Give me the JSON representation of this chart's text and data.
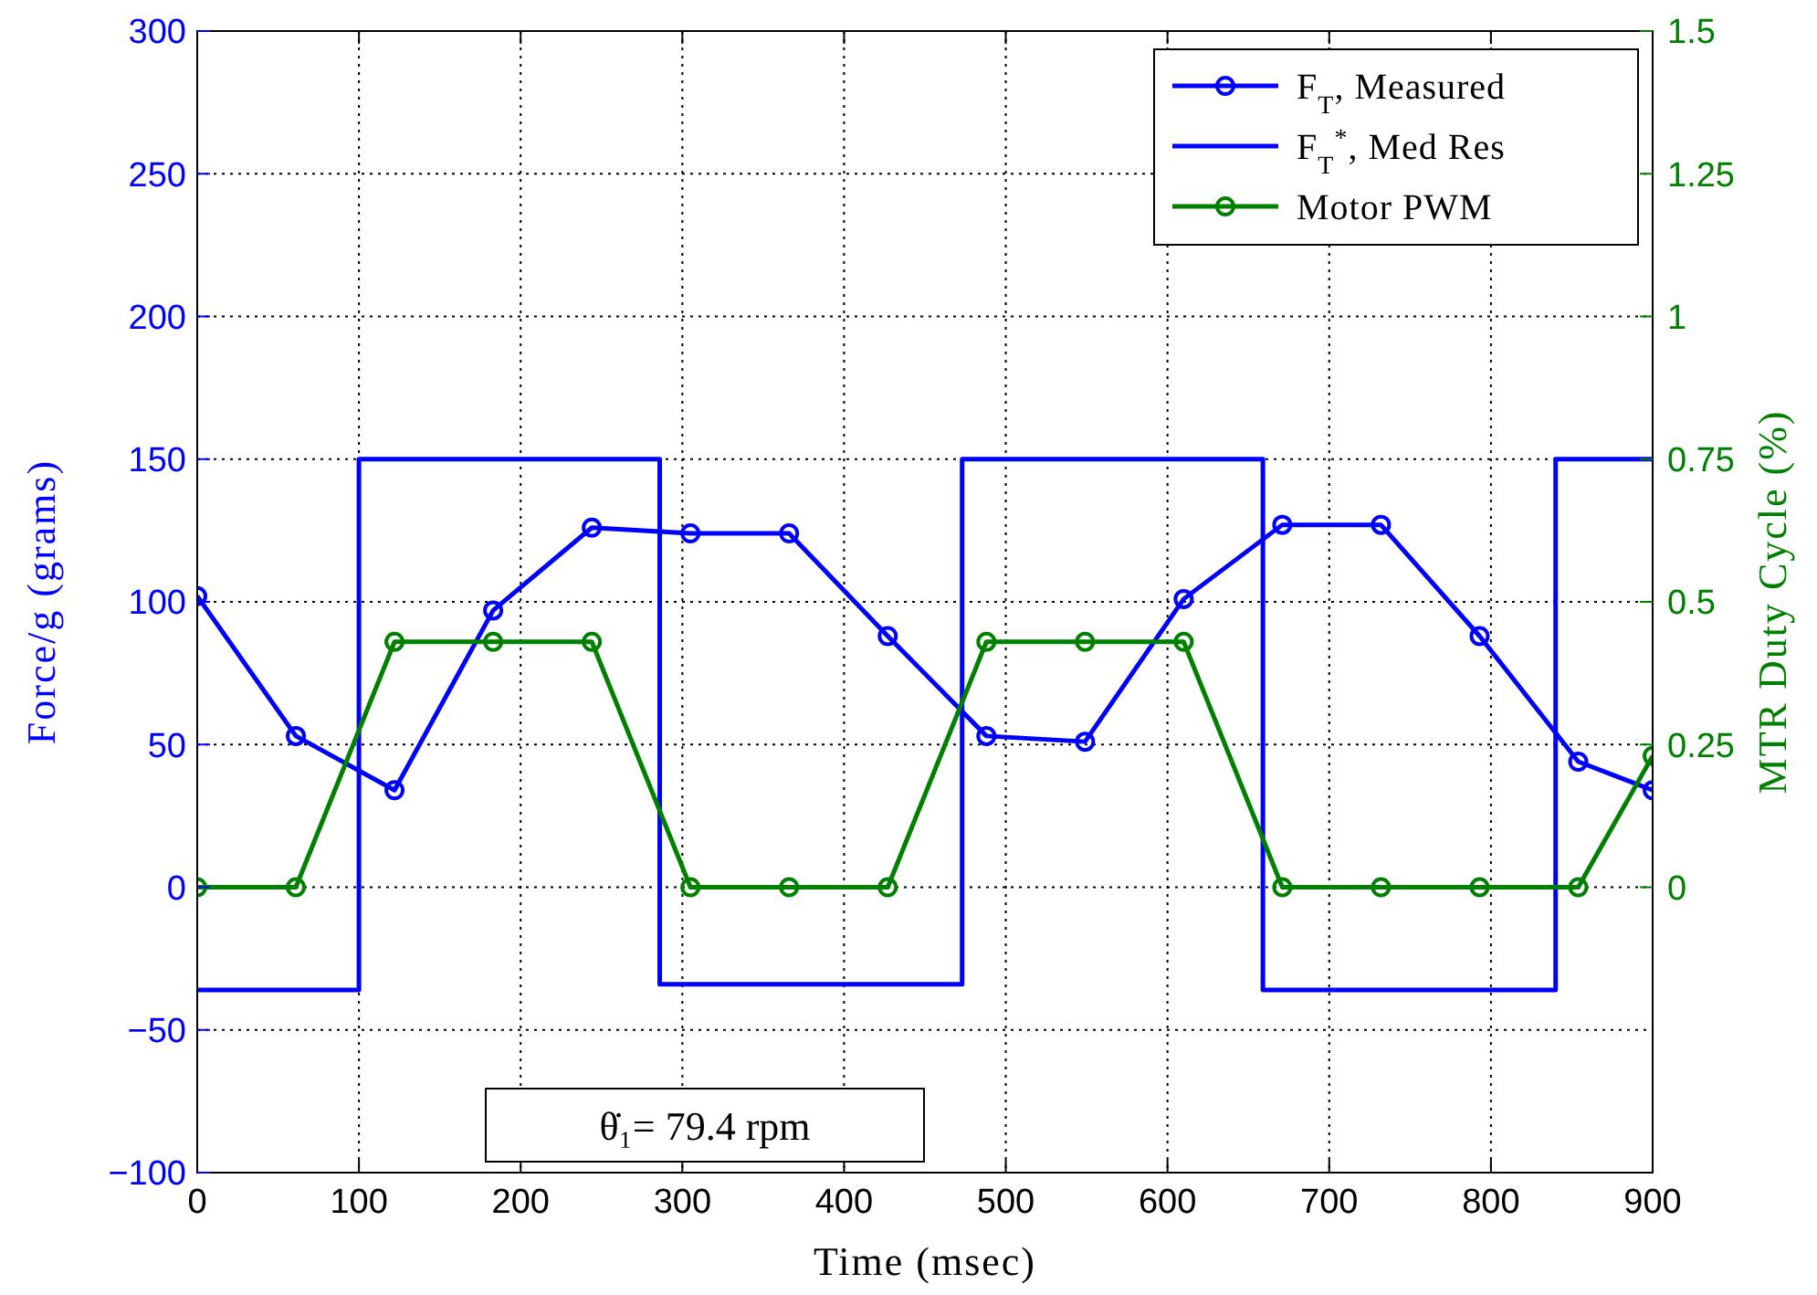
{
  "chart_data": {
    "type": "line",
    "xlabel": "Time (msec)",
    "ylabel": "Force/g (grams)",
    "y2label": "MTR Duty Cycle (%)",
    "x": [
      0,
      61,
      122,
      183,
      244,
      305,
      366,
      427,
      488,
      549,
      610,
      671,
      732,
      793,
      854,
      900
    ],
    "series": [
      {
        "name": "F$_{T}$, Measured",
        "color": "#0000ff",
        "marker": "circle",
        "values": [
          102,
          53,
          34,
          97,
          126,
          124,
          124,
          88,
          53,
          51,
          101,
          127,
          127,
          88,
          44,
          34
        ]
      },
      {
        "name": "F$_{T}$$^{*}$, Med Res",
        "color": "#0000ff",
        "marker": "none",
        "x": [
          0,
          100,
          100,
          286,
          286,
          473,
          473,
          659,
          659,
          840,
          840,
          900
        ],
        "values": [
          -36,
          -36,
          150,
          150,
          -34,
          -34,
          150,
          150,
          -36,
          -36,
          150,
          150
        ]
      },
      {
        "name": "Motor PWM",
        "color": "#008000",
        "marker": "circle",
        "axis": "y2",
        "values": [
          0,
          0,
          0.43,
          0.43,
          0.43,
          0,
          0,
          0,
          0.43,
          0.43,
          0.43,
          0,
          0,
          0,
          0,
          0.23
        ]
      }
    ],
    "xlim": [
      0,
      900
    ],
    "xticks": [
      0,
      100,
      200,
      300,
      400,
      500,
      600,
      700,
      800,
      900
    ],
    "ylim": [
      -100,
      300
    ],
    "yticks": [
      {
        "value": -100,
        "label": "−100"
      },
      {
        "value": -50,
        "label": "−50"
      },
      0,
      50,
      100,
      150,
      200,
      250,
      300
    ],
    "y2lim": [
      -0.5,
      1.5
    ],
    "y2ticks": [
      0,
      0.25,
      0.5,
      0.75,
      1,
      1.25,
      1.5
    ],
    "grid": true,
    "legend": "top right",
    "line_style": "solid",
    "annotations": [
      "θ̇₁= 79.4 rpm"
    ]
  }
}
